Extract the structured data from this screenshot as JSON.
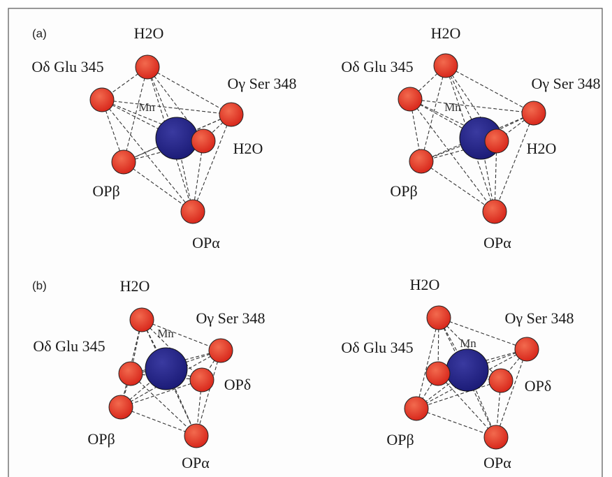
{
  "panels": [
    {
      "label": "(a)",
      "views": [
        {
          "atoms": [
            {
              "label": "H2O"
            },
            {
              "label": "Oδ Glu 345"
            },
            {
              "label": "Oγ Ser 348"
            },
            {
              "label": "Mn"
            },
            {
              "label": "H2O"
            },
            {
              "label": "OPβ"
            },
            {
              "label": "OPα"
            }
          ]
        },
        {
          "atoms": [
            {
              "label": "H2O"
            },
            {
              "label": "Oδ Glu 345"
            },
            {
              "label": "Oγ Ser 348"
            },
            {
              "label": "Mn"
            },
            {
              "label": "H2O"
            },
            {
              "label": "OPβ"
            },
            {
              "label": "OPα"
            }
          ]
        }
      ]
    },
    {
      "label": "(b)",
      "views": [
        {
          "atoms": [
            {
              "label": "H2O"
            },
            {
              "label": "Oγ Ser 348"
            },
            {
              "label": "Oδ Glu 345"
            },
            {
              "label": "Mn"
            },
            {
              "label": "OPδ"
            },
            {
              "label": "OPβ"
            },
            {
              "label": "OPα"
            }
          ]
        },
        {
          "atoms": [
            {
              "label": "H2O"
            },
            {
              "label": "Oγ Ser 348"
            },
            {
              "label": "Oδ Glu 345"
            },
            {
              "label": "Mn"
            },
            {
              "label": "OPδ"
            },
            {
              "label": "OPβ"
            },
            {
              "label": "OPα"
            }
          ]
        }
      ]
    }
  ]
}
